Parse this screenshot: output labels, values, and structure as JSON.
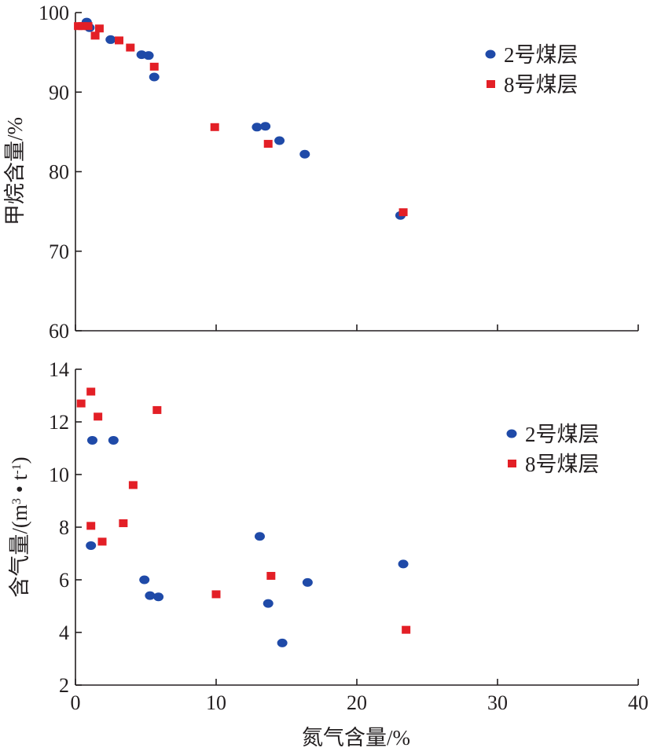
{
  "chart_data": [
    {
      "type": "scatter",
      "title": "",
      "xlabel": "",
      "ylabel": "甲烷含量/%",
      "xlim": [
        0,
        40
      ],
      "ylim": [
        60,
        100
      ],
      "xticks": [],
      "yticks": [
        "60",
        "70",
        "80",
        "90",
        "100"
      ],
      "grid": false,
      "legend_position": "top-right",
      "series": [
        {
          "name": "2号煤层",
          "marker": "ellipse",
          "color": "#1f4aa8",
          "points": [
            [
              0.8,
              98.8
            ],
            [
              1.0,
              98.1
            ],
            [
              2.5,
              96.6
            ],
            [
              4.7,
              94.7
            ],
            [
              5.2,
              94.6
            ],
            [
              5.6,
              91.9
            ],
            [
              12.9,
              85.6
            ],
            [
              13.5,
              85.7
            ],
            [
              14.5,
              83.9
            ],
            [
              16.3,
              82.2
            ],
            [
              23.1,
              74.5
            ]
          ]
        },
        {
          "name": "8号煤层",
          "marker": "square",
          "color": "#e31f26",
          "points": [
            [
              0.2,
              98.3
            ],
            [
              0.5,
              98.3
            ],
            [
              0.9,
              98.3
            ],
            [
              1.4,
              97.1
            ],
            [
              1.7,
              98.0
            ],
            [
              3.1,
              96.5
            ],
            [
              3.9,
              95.6
            ],
            [
              5.6,
              93.2
            ],
            [
              9.9,
              85.6
            ],
            [
              13.7,
              83.5
            ],
            [
              23.3,
              74.9
            ]
          ]
        }
      ]
    },
    {
      "type": "scatter",
      "title": "",
      "xlabel": "氮气含量/%",
      "ylabel_main": "含气量/(m",
      "ylabel_sup1": "3",
      "ylabel_mid": " • t",
      "ylabel_sup2": "-1",
      "ylabel_end": ")",
      "xlim": [
        0,
        40
      ],
      "ylim": [
        2,
        14
      ],
      "xticks": [
        "0",
        "10",
        "20",
        "30",
        "40"
      ],
      "yticks": [
        "2",
        "4",
        "6",
        "8",
        "10",
        "12",
        "14"
      ],
      "grid": false,
      "legend_position": "top-right",
      "series": [
        {
          "name": "2号煤层",
          "marker": "ellipse",
          "color": "#1f4aa8",
          "points": [
            [
              1.2,
              11.3
            ],
            [
              2.7,
              11.3
            ],
            [
              1.1,
              7.3
            ],
            [
              4.9,
              6.0
            ],
            [
              5.3,
              5.4
            ],
            [
              5.9,
              5.35
            ],
            [
              13.1,
              7.65
            ],
            [
              13.7,
              5.1
            ],
            [
              14.7,
              3.6
            ],
            [
              16.5,
              5.9
            ],
            [
              23.3,
              6.6
            ]
          ]
        },
        {
          "name": "8号煤层",
          "marker": "square",
          "color": "#e31f26",
          "points": [
            [
              0.4,
              12.7
            ],
            [
              1.1,
              13.15
            ],
            [
              1.6,
              12.2
            ],
            [
              5.8,
              12.45
            ],
            [
              1.1,
              8.05
            ],
            [
              1.9,
              7.45
            ],
            [
              3.4,
              8.15
            ],
            [
              4.1,
              9.6
            ],
            [
              10.0,
              5.45
            ],
            [
              13.9,
              6.15
            ],
            [
              23.5,
              4.1
            ]
          ]
        }
      ]
    }
  ]
}
